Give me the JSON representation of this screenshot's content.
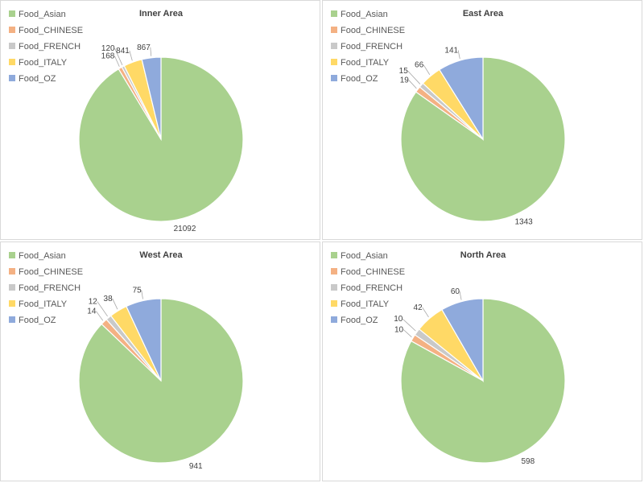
{
  "colors": {
    "Food_Asian": "#a9d18e",
    "Food_CHINESE": "#f4b183",
    "Food_FRENCH": "#c9c9c9",
    "Food_ITALY": "#ffd966",
    "Food_OZ": "#8faadc"
  },
  "chart_data": [
    {
      "type": "pie",
      "title": "Inner Area",
      "categories": [
        "Food_Asian",
        "Food_CHINESE",
        "Food_FRENCH",
        "Food_ITALY",
        "Food_OZ"
      ],
      "values": [
        21092,
        168,
        120,
        841,
        867
      ],
      "legend": "top-left"
    },
    {
      "type": "pie",
      "title": "East Area",
      "categories": [
        "Food_Asian",
        "Food_CHINESE",
        "Food_FRENCH",
        "Food_ITALY",
        "Food_OZ"
      ],
      "values": [
        1343,
        19,
        15,
        66,
        141
      ],
      "legend": "top-left"
    },
    {
      "type": "pie",
      "title": "West Area",
      "categories": [
        "Food_Asian",
        "Food_CHINESE",
        "Food_FRENCH",
        "Food_ITALY",
        "Food_OZ"
      ],
      "values": [
        941,
        14,
        12,
        38,
        75
      ],
      "legend": "top-left"
    },
    {
      "type": "pie",
      "title": "North Area",
      "categories": [
        "Food_Asian",
        "Food_CHINESE",
        "Food_FRENCH",
        "Food_ITALY",
        "Food_OZ"
      ],
      "values": [
        598,
        10,
        10,
        42,
        60
      ],
      "legend": "top-left"
    }
  ]
}
